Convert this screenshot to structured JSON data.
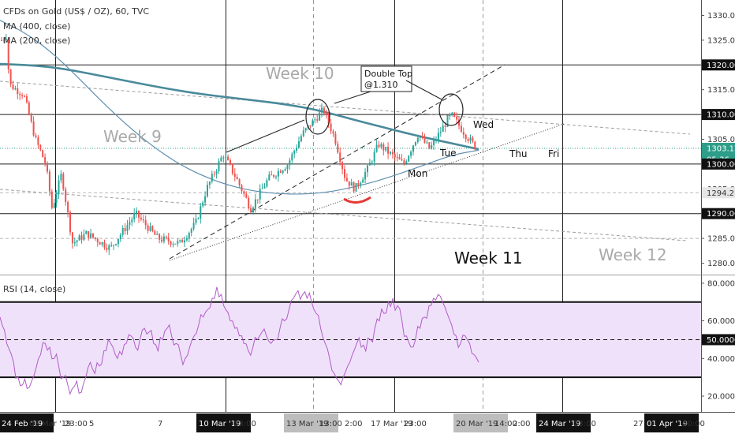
{
  "legend": {
    "symbol": "CFDs on Gold (US$ / OZ), 60, TVC",
    "ma1": "MA (400, close)",
    "ma2": "MA (200, close)",
    "rsi": "RSI (14, close)"
  },
  "colors": {
    "up": "#26a69a",
    "down": "#ef5350",
    "ma400": "#4a8a9a",
    "ma200": "#5f8faf",
    "rsi_line": "#b05cc6",
    "rsi_band": "#efe1fa",
    "last_price": "#2e9e8a",
    "swoosh": "#e53935"
  },
  "chart_data": [
    {
      "type": "candlestick",
      "title": "CFDs on Gold (US$ / OZ), 60, TVC",
      "ylim": [
        1277,
        1333
      ],
      "y_ticks": [
        1280,
        1285,
        1290,
        1295,
        1300,
        1305,
        1310,
        1315,
        1320,
        1325,
        1330
      ],
      "x_ticks": [
        "24 Feb '19",
        "03 Mar '19",
        "23:00",
        "5",
        "7",
        "10 Mar '19",
        "23:00",
        "13 Mar '19",
        "13:00",
        "2:00",
        "17 Mar '19",
        "23:00",
        "20 Mar '19",
        "14:00",
        "2:00",
        "24 Mar '19",
        "23:00",
        "27",
        "01 Apr '19",
        "00:00"
      ],
      "price_badges": [
        "1320.00",
        "1310.00",
        "1303.17",
        "05:36",
        "1300.00",
        "1294.21",
        "1290.00"
      ],
      "last_price": 1303.17,
      "horizontal_levels": [
        1320.0,
        1310.0,
        1300.0,
        1294.21,
        1290.0,
        1285.0
      ],
      "ma_series": [
        {
          "name": "MA (400, close)",
          "values": [
            1320.2,
            1320.0,
            1319.6,
            1318.8,
            1317.8,
            1316.8,
            1315.8,
            1314.9,
            1314.1,
            1313.5,
            1312.9,
            1312.3,
            1311.5,
            1310.4,
            1309.0,
            1307.7,
            1306.4,
            1305.2,
            1304.1,
            1303.0
          ]
        },
        {
          "name": "MA (200, close)",
          "values": [
            1329.0,
            1326.5,
            1322.8,
            1318.0,
            1312.8,
            1308.0,
            1303.8,
            1300.3,
            1297.7,
            1295.8,
            1294.6,
            1294.0,
            1293.9,
            1294.3,
            1295.3,
            1296.6,
            1298.3,
            1300.1,
            1301.9,
            1302.8
          ]
        }
      ],
      "annotations": [
        "Week 9",
        "Week 10",
        "Week 11",
        "Week 12",
        "Double Top",
        "@1.310",
        "Mon",
        "Tue",
        "Wed",
        "Thu",
        "Fri"
      ]
    },
    {
      "type": "line",
      "title": "RSI (14, close)",
      "ylim": [
        12,
        83
      ],
      "y_ticks": [
        "20.0000",
        "40.0000",
        "60.0000",
        "80.0000"
      ],
      "level_badge": "50.0000",
      "band": [
        30,
        70
      ],
      "midline": 50,
      "series": [
        {
          "name": "RSI (14, close)",
          "values": [
            62,
            55,
            45,
            38,
            30,
            26,
            24,
            28,
            35,
            42,
            48,
            46,
            40,
            36,
            30,
            26,
            24,
            28,
            22,
            30,
            38,
            32,
            36,
            44,
            50,
            46,
            40,
            42,
            48,
            52,
            46,
            50,
            56,
            54,
            48,
            44,
            50,
            56,
            52,
            48,
            42,
            40,
            46,
            52,
            58,
            62,
            66,
            72,
            78,
            74,
            66,
            60,
            56,
            52,
            48,
            44,
            46,
            50,
            54,
            52,
            48,
            50,
            56,
            60,
            66,
            72,
            76,
            74,
            72,
            70,
            64,
            56,
            48,
            40,
            32,
            28,
            30,
            36,
            42,
            48,
            46,
            44,
            50,
            56,
            60,
            64,
            70,
            72,
            68,
            60,
            52,
            46,
            50,
            56,
            62,
            68,
            72,
            74,
            70,
            64,
            58,
            52,
            48,
            52,
            48,
            42,
            38
          ]
        }
      ]
    }
  ]
}
